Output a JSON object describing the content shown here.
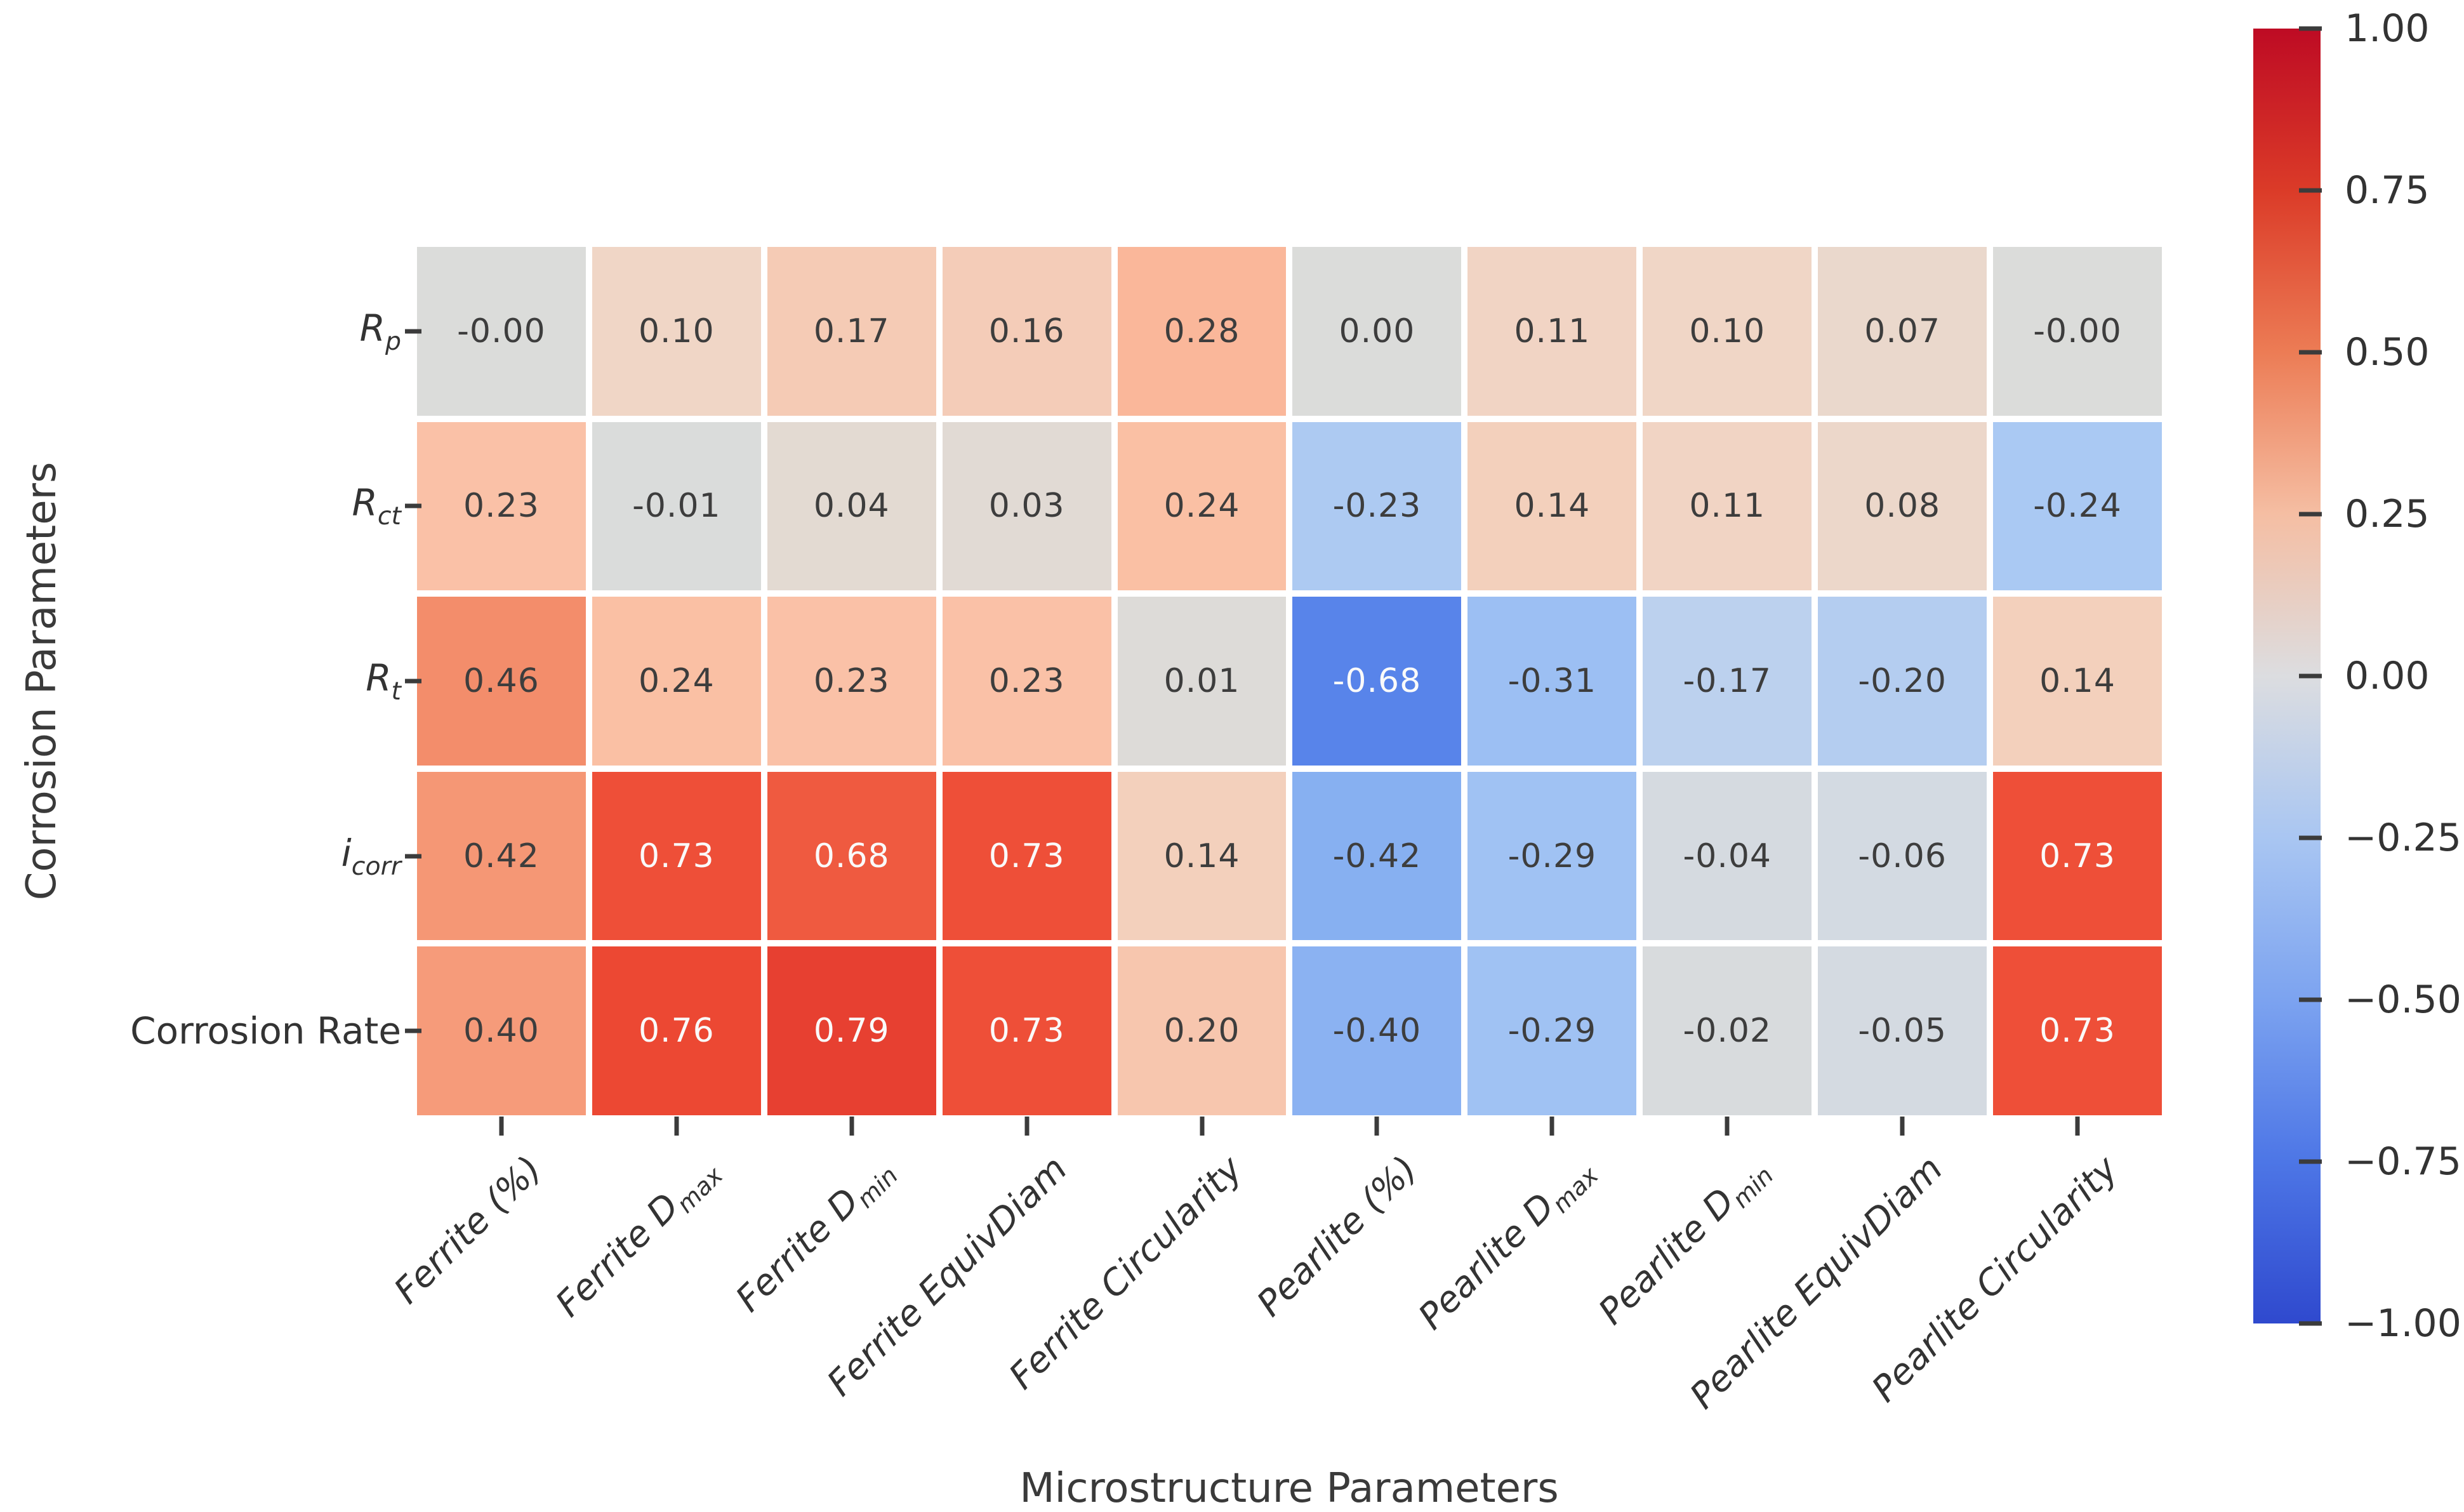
{
  "axes": {
    "x_title": "Microstructure Parameters",
    "y_title": "Corrosion Parameters"
  },
  "chart_data": {
    "type": "heatmap",
    "xlabel": "Microstructure Parameters",
    "ylabel": "Corrosion Parameters",
    "x_categories": [
      "Ferrite (%)",
      "Ferrite D_max",
      "Ferrite D_min",
      "Ferrite EquivDiam",
      "Ferrite Circularity",
      "Pearlite (%)",
      "Pearlite D_max",
      "Pearlite D_min",
      "Pearlite EquivDiam",
      "Pearlite Circularity"
    ],
    "y_categories": [
      "R_p",
      "R_ct",
      "R_t",
      "i_corr",
      "Corrosion Rate"
    ],
    "values": [
      [
        -0.0,
        0.1,
        0.17,
        0.16,
        0.28,
        0.0,
        0.11,
        0.1,
        0.07,
        -0.0
      ],
      [
        0.23,
        -0.01,
        0.04,
        0.03,
        0.24,
        -0.23,
        0.14,
        0.11,
        0.08,
        -0.24
      ],
      [
        0.46,
        0.24,
        0.23,
        0.23,
        0.01,
        -0.68,
        -0.31,
        -0.17,
        -0.2,
        0.14
      ],
      [
        0.42,
        0.73,
        0.68,
        0.73,
        0.14,
        -0.42,
        -0.29,
        -0.04,
        -0.06,
        0.73
      ],
      [
        0.4,
        0.76,
        0.79,
        0.73,
        0.2,
        -0.4,
        -0.29,
        -0.02,
        -0.05,
        0.73
      ]
    ],
    "cell_labels": [
      [
        "-0.00",
        "0.10",
        "0.17",
        "0.16",
        "0.28",
        "0.00",
        "0.11",
        "0.10",
        "0.07",
        "-0.00"
      ],
      [
        "0.23",
        "-0.01",
        "0.04",
        "0.03",
        "0.24",
        "-0.23",
        "0.14",
        "0.11",
        "0.08",
        "-0.24"
      ],
      [
        "0.46",
        "0.24",
        "0.23",
        "0.23",
        "0.01",
        "-0.68",
        "-0.31",
        "-0.17",
        "-0.20",
        "0.14"
      ],
      [
        "0.42",
        "0.73",
        "0.68",
        "0.73",
        "0.14",
        "-0.42",
        "-0.29",
        "-0.04",
        "-0.06",
        "0.73"
      ],
      [
        "0.40",
        "0.76",
        "0.79",
        "0.73",
        "0.20",
        "-0.40",
        "-0.29",
        "-0.02",
        "-0.05",
        "0.73"
      ]
    ],
    "zlim": [
      -1,
      1
    ],
    "legend_position": "right-colorbar",
    "colorbar_ticks": [
      "1.00",
      "0.75",
      "0.50",
      "0.25",
      "0.00",
      "−0.25",
      "−0.50",
      "−0.75",
      "−1.00"
    ],
    "colorbar_tick_values": [
      1,
      0.75,
      0.5,
      0.25,
      0,
      -0.25,
      -0.5,
      -0.75,
      -1
    ],
    "colormap_anchors": [
      [
        -1,
        "#2C48D0"
      ],
      [
        -0.75,
        "#4C78E8"
      ],
      [
        -0.5,
        "#78A4F0"
      ],
      [
        -0.25,
        "#A8C8F4"
      ],
      [
        -0.1,
        "#CDD8E8"
      ],
      [
        0,
        "#DBDCDA"
      ],
      [
        0.1,
        "#F0D6C6"
      ],
      [
        0.25,
        "#FBBEA2"
      ],
      [
        0.5,
        "#F28460"
      ],
      [
        0.75,
        "#EE4A34"
      ],
      [
        1,
        "#C00C20"
      ]
    ],
    "colorbar_gradient": [
      [
        1,
        "#BE0B24"
      ],
      [
        0.75,
        "#DB3B28"
      ],
      [
        0.5,
        "#EC7C55"
      ],
      [
        0.25,
        "#F5BEA3"
      ],
      [
        0,
        "#DCDDE0"
      ],
      [
        -0.25,
        "#A9C6F2"
      ],
      [
        -0.5,
        "#7CA3F0"
      ],
      [
        -0.75,
        "#4D76E6"
      ],
      [
        -1,
        "#2F49CE"
      ]
    ],
    "cell_text_dark": "#3d3d3d",
    "cell_text_light": "#fafafa",
    "y_tick_segments": [
      [
        {
          "t": "R",
          "i": 1
        },
        {
          "t": "p",
          "i": 1,
          "s": 1
        }
      ],
      [
        {
          "t": "R",
          "i": 1
        },
        {
          "t": "ct",
          "i": 1,
          "s": 1
        }
      ],
      [
        {
          "t": "R",
          "i": 1
        },
        {
          "t": "t",
          "i": 1,
          "s": 1
        }
      ],
      [
        {
          "t": "i",
          "i": 1
        },
        {
          "t": "corr",
          "i": 1,
          "s": 1
        }
      ],
      [
        {
          "t": "Corrosion Rate",
          "i": 0
        }
      ]
    ],
    "x_tick_segments": [
      [
        {
          "t": "Ferrite (%)",
          "i": 1
        }
      ],
      [
        {
          "t": "Ferrite D",
          "i": 1
        },
        {
          "t": "max",
          "i": 1,
          "s": 1
        }
      ],
      [
        {
          "t": "Ferrite D",
          "i": 1
        },
        {
          "t": "min",
          "i": 1,
          "s": 1
        }
      ],
      [
        {
          "t": "Ferrite EquivDiam",
          "i": 1
        }
      ],
      [
        {
          "t": "Ferrite Circularity",
          "i": 1
        }
      ],
      [
        {
          "t": "Pearlite (%)",
          "i": 1
        }
      ],
      [
        {
          "t": "Pearlite D",
          "i": 1
        },
        {
          "t": "max",
          "i": 1,
          "s": 1
        }
      ],
      [
        {
          "t": "Pearlite D",
          "i": 1
        },
        {
          "t": "min",
          "i": 1,
          "s": 1
        }
      ],
      [
        {
          "t": "Pearlite EquivDiam",
          "i": 1
        }
      ],
      [
        {
          "t": "Pearlite Circularity",
          "i": 1
        }
      ]
    ]
  }
}
